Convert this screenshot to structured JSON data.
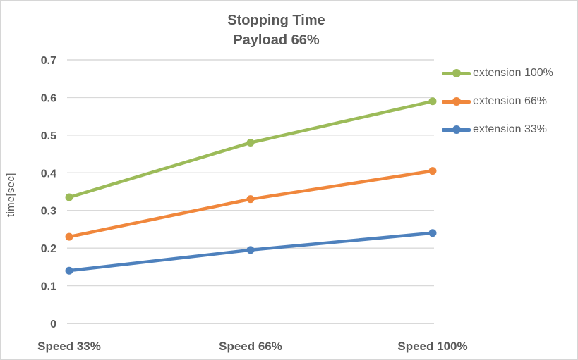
{
  "chart_data": {
    "type": "line",
    "title": "Stopping Time",
    "subtitle": "Payload 66%",
    "ylabel": "time[sec]",
    "xlabel": "",
    "categories": [
      "Speed 33%",
      "Speed 66%",
      "Speed 100%"
    ],
    "series": [
      {
        "name": "extension 100%",
        "color": "#9CBB59",
        "values": [
          0.335,
          0.48,
          0.59
        ]
      },
      {
        "name": "extension 66%",
        "color": "#F0873C",
        "values": [
          0.23,
          0.33,
          0.405
        ]
      },
      {
        "name": "extension 33%",
        "color": "#4E81BD",
        "values": [
          0.14,
          0.195,
          0.24
        ]
      }
    ],
    "ylim": [
      0,
      0.7
    ],
    "yticks": [
      "0.7",
      "0.6",
      "0.5",
      "0.4",
      "0.3",
      "0.2",
      "0.1",
      "0"
    ],
    "grid": true,
    "legend_position": "right",
    "colors": {
      "text": "#595959",
      "gridline": "#D9D9D9",
      "chart_border": "#D6D6D6",
      "background": "#FFFFFF"
    }
  }
}
